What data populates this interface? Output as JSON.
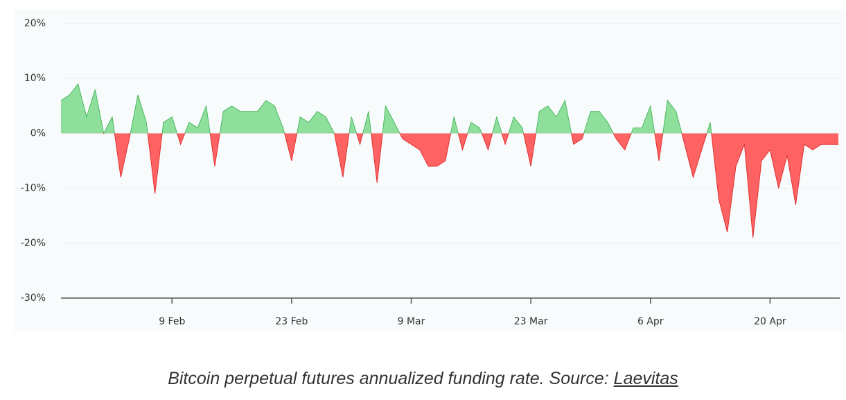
{
  "chart_data": {
    "type": "area",
    "x": [
      "27 Jan",
      "28 Jan",
      "29 Jan",
      "30 Jan",
      "31 Jan",
      "1 Feb",
      "2 Feb",
      "3 Feb",
      "4 Feb",
      "5 Feb",
      "6 Feb",
      "7 Feb",
      "8 Feb",
      "9 Feb",
      "10 Feb",
      "11 Feb",
      "12 Feb",
      "13 Feb",
      "14 Feb",
      "15 Feb",
      "16 Feb",
      "17 Feb",
      "18 Feb",
      "19 Feb",
      "20 Feb",
      "21 Feb",
      "22 Feb",
      "23 Feb",
      "24 Feb",
      "25 Feb",
      "26 Feb",
      "27 Feb",
      "28 Feb",
      "1 Mar",
      "2 Mar",
      "3 Mar",
      "4 Mar",
      "5 Mar",
      "6 Mar",
      "7 Mar",
      "8 Mar",
      "9 Mar",
      "10 Mar",
      "11 Mar",
      "12 Mar",
      "13 Mar",
      "14 Mar",
      "15 Mar",
      "16 Mar",
      "17 Mar",
      "18 Mar",
      "19 Mar",
      "20 Mar",
      "21 Mar",
      "22 Mar",
      "23 Mar",
      "24 Mar",
      "25 Mar",
      "26 Mar",
      "27 Mar",
      "28 Mar",
      "29 Mar",
      "30 Mar",
      "31 Mar",
      "1 Apr",
      "2 Apr",
      "3 Apr",
      "4 Apr",
      "5 Apr",
      "6 Apr",
      "7 Apr",
      "8 Apr",
      "9 Apr",
      "10 Apr",
      "11 Apr",
      "12 Apr",
      "13 Apr",
      "14 Apr",
      "15 Apr",
      "16 Apr",
      "17 Apr",
      "18 Apr",
      "19 Apr",
      "20 Apr",
      "21 Apr",
      "22 Apr",
      "23 Apr",
      "24 Apr",
      "25 Apr",
      "26 Apr",
      "27 Apr",
      "28 Apr"
    ],
    "values": [
      6,
      7,
      9,
      3,
      8,
      0,
      3,
      -8,
      -1,
      7,
      2,
      -11,
      2,
      3,
      -2,
      2,
      1,
      5,
      -6,
      4,
      5,
      4,
      4,
      4,
      6,
      5,
      1,
      -5,
      3,
      2,
      4,
      3,
      0,
      -8,
      3,
      -2,
      4,
      -9,
      5,
      2,
      -1,
      -2,
      -3,
      -6,
      -6,
      -5,
      3,
      -3,
      2,
      1,
      -3,
      3,
      -2,
      3,
      1,
      -6,
      4,
      5,
      3,
      6,
      -2,
      -1,
      4,
      4,
      2,
      -1,
      -3,
      1,
      1,
      5,
      -5,
      6,
      4,
      -2,
      -8,
      -3,
      2,
      -12,
      -18,
      -6,
      -2,
      -19,
      -5,
      -3,
      -10,
      -4,
      -13,
      -2,
      -3,
      -2,
      -2,
      -2
    ],
    "positive_color": "#8fdf9c",
    "negative_color": "#ff6262",
    "xlim": [
      "27 Jan",
      "28 Apr"
    ],
    "xticks": [
      "9 Feb",
      "23 Feb",
      "9 Mar",
      "23 Mar",
      "6 Apr",
      "20 Apr"
    ],
    "ylim": [
      -30,
      20
    ],
    "yticks": [
      {
        "value": -30,
        "label": "-30%"
      },
      {
        "value": -20,
        "label": "-20%"
      },
      {
        "value": -10,
        "label": "-10%"
      },
      {
        "value": 0,
        "label": "0%"
      },
      {
        "value": 10,
        "label": "10%"
      },
      {
        "value": 20,
        "label": "20%"
      }
    ],
    "grid": true
  },
  "caption": "Bitcoin perpetual futures annualized funding rate. Source:",
  "source": "Laevitas"
}
